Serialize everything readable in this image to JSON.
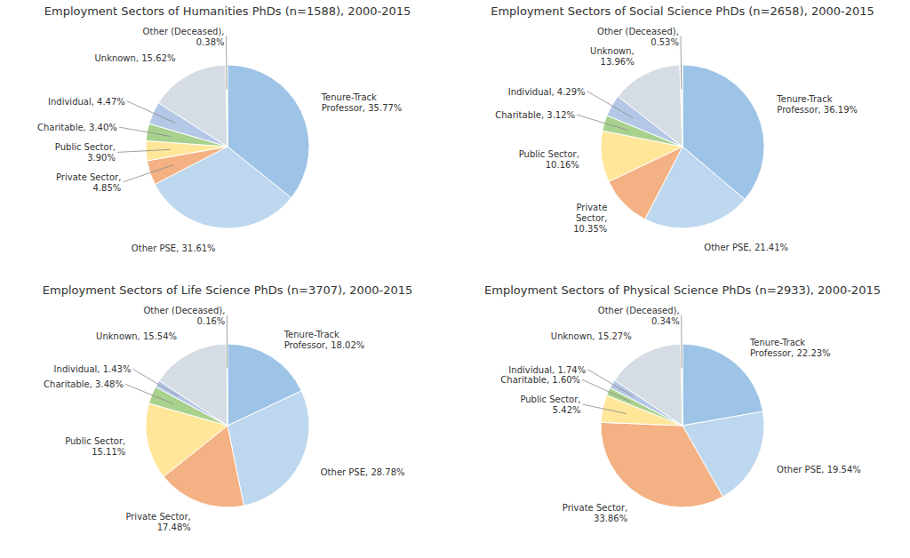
{
  "chart_data": [
    {
      "type": "pie",
      "title": "Employment Sectors of Humanities PhDs (n=1588), 2000-2015",
      "categories": [
        "Tenure-Track\nProfessor, 35.77%",
        "Other PSE, 31.61%",
        "Private Sector,\n4.85%",
        "Public Sector,\n3.90%",
        "Charitable, 3.40%",
        "Individual, 4.47%",
        "Unknown, 15.62%",
        "Other (Deceased),\n0.38%"
      ],
      "values": [
        35.77,
        31.61,
        4.85,
        3.9,
        3.4,
        4.47,
        15.62,
        0.38
      ],
      "colors": [
        "#9DC3E6",
        "#BDD7EE",
        "#F4B183",
        "#FFE699",
        "#A9D18E",
        "#B4C7E7",
        "#D6DCE4",
        "#EDEDED"
      ]
    },
    {
      "type": "pie",
      "title": "Employment Sectors of Social Science PhDs (n=2658), 2000-2015",
      "categories": [
        "Tenure-Track\nProfessor, 36.19%",
        "Other PSE, 21.41%",
        "Private\nSector,\n10.35%",
        "Public Sector,\n10.16%",
        "Charitable, 3.12%",
        "Individual, 4.29%",
        "Unknown,\n13.96%",
        "Other (Deceased),\n0.53%"
      ],
      "values": [
        36.19,
        21.41,
        10.35,
        10.16,
        3.12,
        4.29,
        13.96,
        0.53
      ],
      "colors": [
        "#9DC3E6",
        "#BDD7EE",
        "#F4B183",
        "#FFE699",
        "#A9D18E",
        "#B4C7E7",
        "#D6DCE4",
        "#EDEDED"
      ]
    },
    {
      "type": "pie",
      "title": "Employment Sectors of Life Science PhDs (n=3707), 2000-2015",
      "categories": [
        "Tenure-Track\nProfessor, 18.02%",
        "Other PSE, 28.78%",
        "Private Sector,\n17.48%",
        "Public Sector,\n15.11%",
        "Charitable, 3.48%",
        "Individual, 1.43%",
        "Unknown, 15.54%",
        "Other (Deceased),\n0.16%"
      ],
      "values": [
        18.02,
        28.78,
        17.48,
        15.11,
        3.48,
        1.43,
        15.54,
        0.16
      ],
      "colors": [
        "#9DC3E6",
        "#BDD7EE",
        "#F4B183",
        "#FFE699",
        "#A9D18E",
        "#B4C7E7",
        "#D6DCE4",
        "#EDEDED"
      ]
    },
    {
      "type": "pie",
      "title": "Employment Sectors of Physical Science PhDs (n=2933), 2000-2015",
      "categories": [
        "Tenure-Track\nProfessor, 22.23%",
        "Other PSE, 19.54%",
        "Private Sector,\n33.86%",
        "Public Sector,\n5.42%",
        "Charitable, 1.60%",
        "Individual, 1.74%",
        "Unknown, 15.27%",
        "Other (Deceased),\n0.34%"
      ],
      "values": [
        22.23,
        19.54,
        33.86,
        5.42,
        1.6,
        1.74,
        15.27,
        0.34
      ],
      "colors": [
        "#9DC3E6",
        "#BDD7EE",
        "#F4B183",
        "#FFE699",
        "#A9D18E",
        "#B4C7E7",
        "#D6DCE4",
        "#EDEDED"
      ]
    }
  ]
}
